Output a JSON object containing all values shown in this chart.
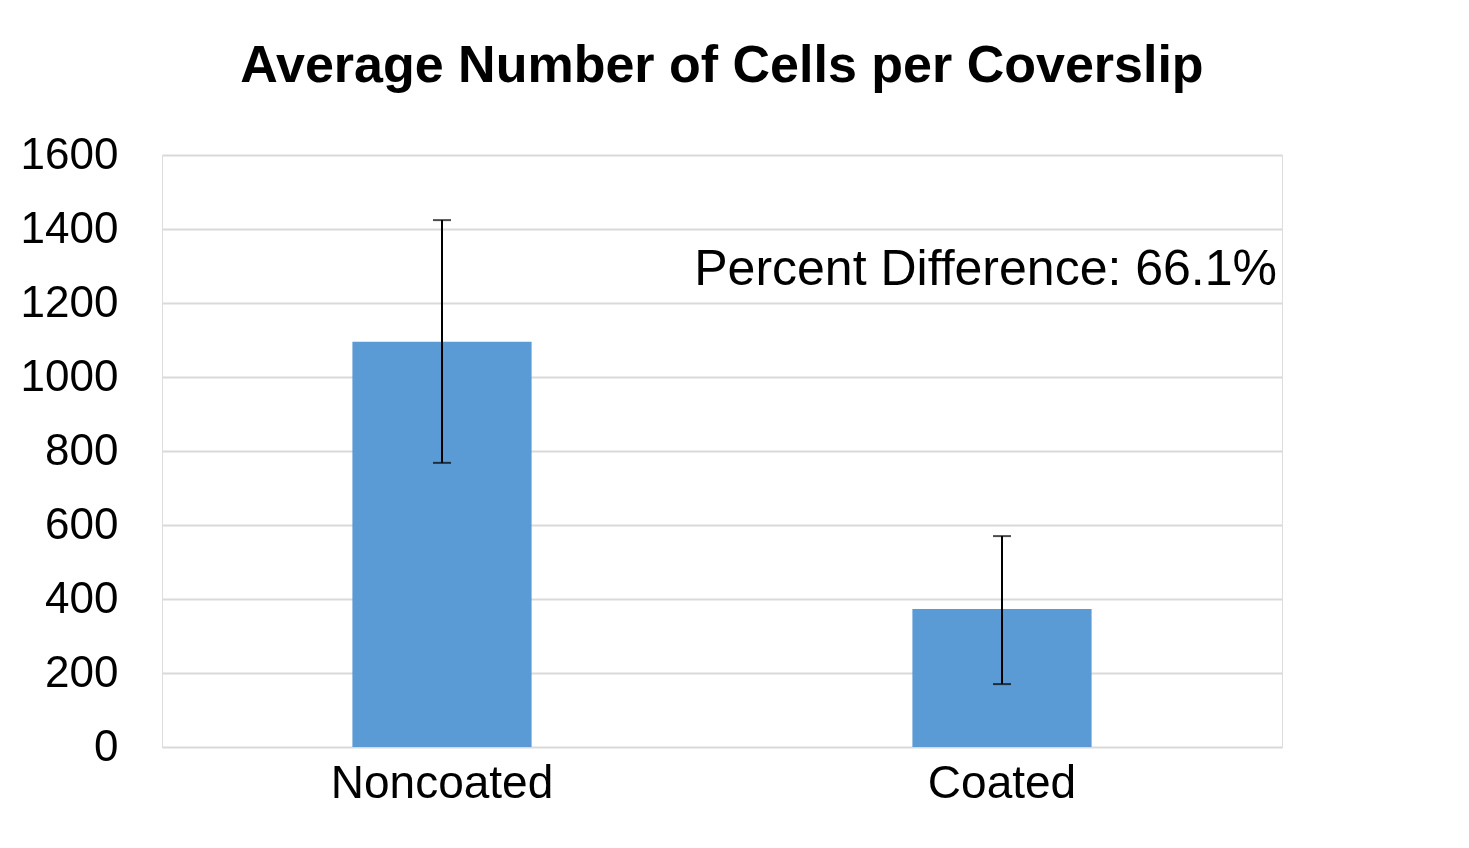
{
  "chart_data": {
    "type": "bar",
    "title": "Average Number of Cells per Coverslip",
    "categories": [
      "Noncoated",
      "Coated"
    ],
    "values": [
      1095,
      373
    ],
    "color": "#5b9bd5",
    "errors": [
      [
        768,
        1424
      ],
      [
        170,
        570
      ]
    ],
    "annotations": [
      "Percent Difference: 66.1%"
    ],
    "ylim": [
      0,
      1600
    ],
    "yticks": [
      0,
      200,
      400,
      600,
      800,
      1000,
      1200,
      1400,
      1600
    ],
    "grid": "y"
  }
}
